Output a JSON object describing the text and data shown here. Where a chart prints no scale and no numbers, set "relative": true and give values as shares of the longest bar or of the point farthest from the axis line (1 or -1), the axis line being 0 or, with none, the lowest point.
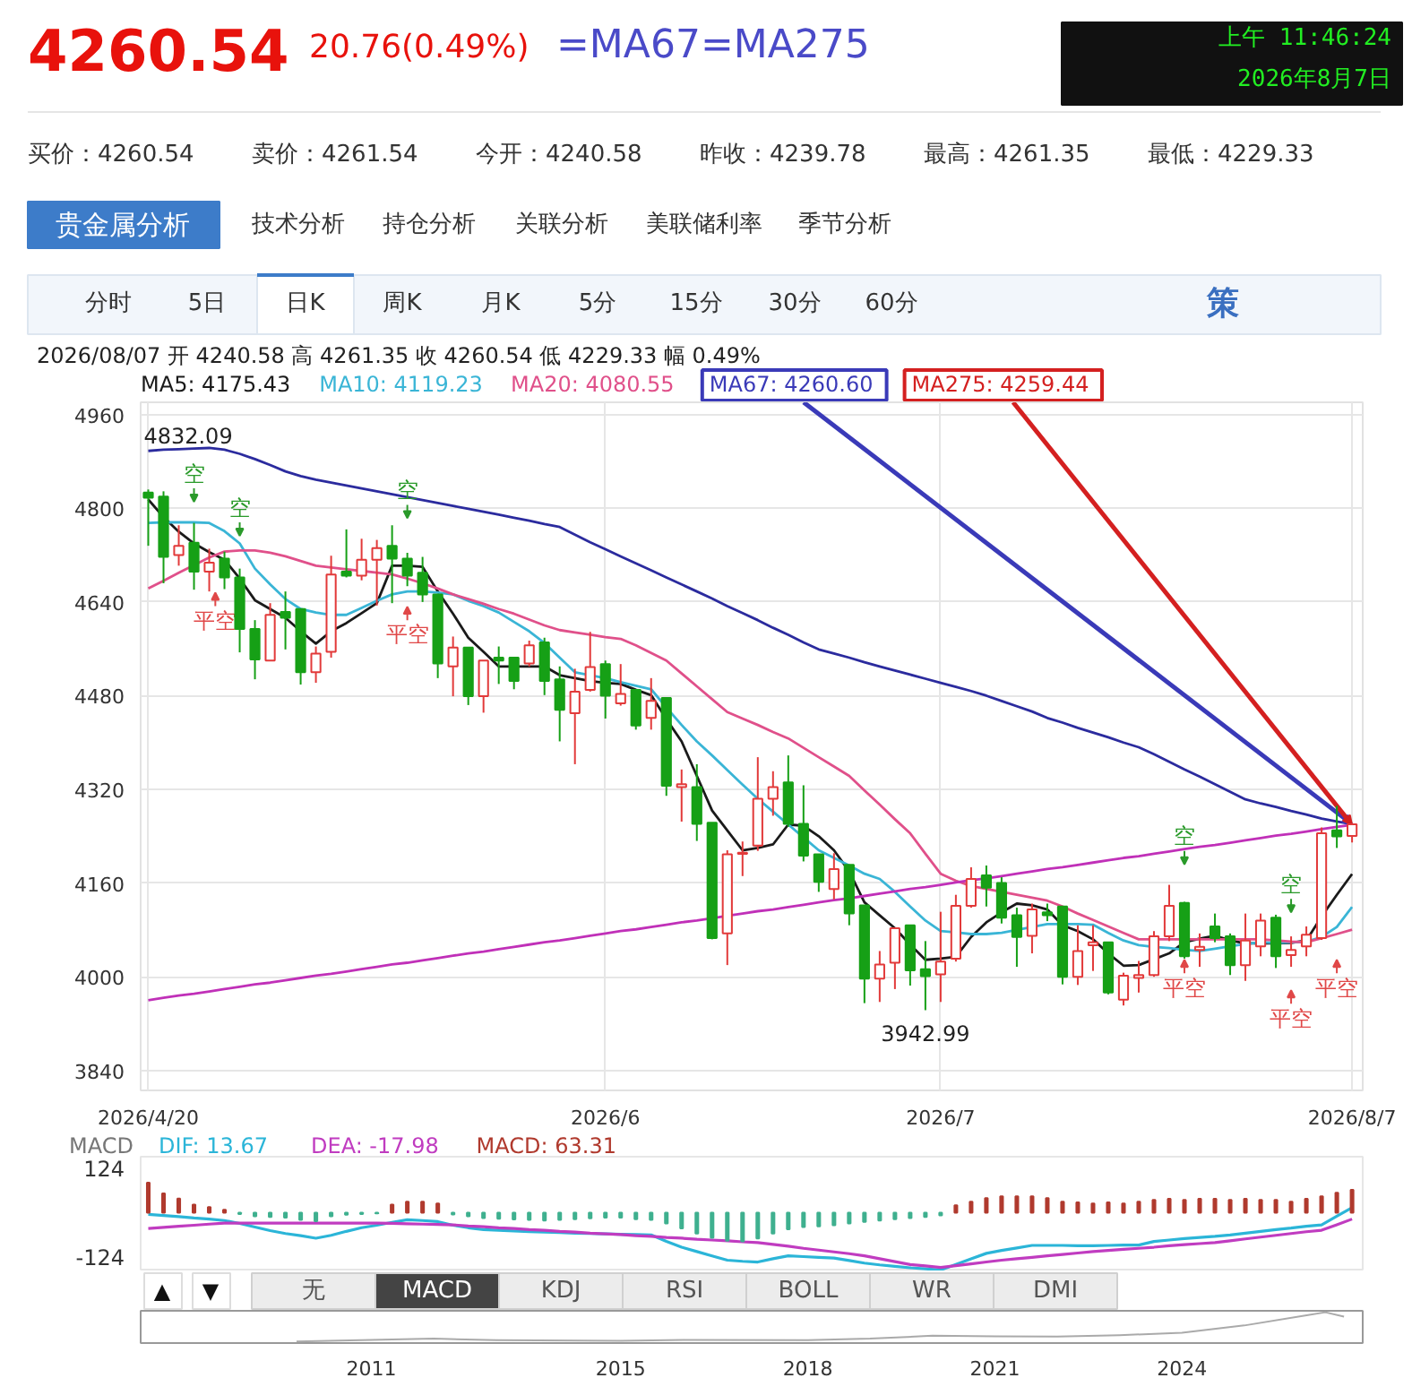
{
  "chart_data": [
    {
      "type": "other",
      "annotations": [
        "4260.54",
        "20.76(0.49%)",
        "=MA67=MA275",
        "上午 11:46:24",
        "2026年8月7日",
        "买价：4260.54",
        "卖价：4261.54",
        "今开：4240.58",
        "昨收：4239.78",
        "最高：4261.35",
        "最低：4229.33",
        "贵金属分析",
        "技术分析",
        "持仓分析",
        "关联分析",
        "美联储利率",
        "季节分析",
        "分时",
        "5日",
        "日K",
        "周K",
        "月K",
        "5分",
        "15分",
        "30分",
        "60分",
        "策"
      ]
    },
    {
      "type": "candlestick",
      "subtitle": "2026/08/07 开 4240.58 高 4261.35 收 4260.54 低 4229.33 幅 0.49%",
      "categories": [
        "2026/4/20",
        null,
        null,
        null,
        null,
        null,
        null,
        null,
        null,
        null,
        null,
        null,
        null,
        null,
        null,
        null,
        null,
        null,
        null,
        null,
        null,
        null,
        null,
        null,
        null,
        null,
        null,
        null,
        null,
        null,
        "2026/6",
        null,
        null,
        null,
        null,
        null,
        null,
        null,
        null,
        null,
        null,
        null,
        null,
        null,
        null,
        null,
        null,
        null,
        null,
        null,
        null,
        null,
        "2026/7",
        null,
        null,
        null,
        null,
        null,
        null,
        null,
        null,
        null,
        null,
        null,
        null,
        null,
        null,
        null,
        null,
        null,
        null,
        null,
        null,
        null,
        null,
        null,
        null,
        null,
        null,
        "2026/8/7"
      ],
      "ohlc": [
        [
          4827,
          4832.09,
          4736,
          4818
        ],
        [
          4820,
          4829,
          4672,
          4717
        ],
        [
          4720,
          4771,
          4702,
          4736
        ],
        [
          4741,
          4775,
          4661,
          4692
        ],
        [
          4692,
          4731,
          4658,
          4707
        ],
        [
          4714,
          4726,
          4662,
          4682
        ],
        [
          4682,
          4697,
          4554,
          4594
        ],
        [
          4594,
          4609,
          4508,
          4542
        ],
        [
          4540,
          4638,
          4540,
          4618
        ],
        [
          4623,
          4658,
          4559,
          4613
        ],
        [
          4628,
          4628,
          4499,
          4520
        ],
        [
          4520,
          4564,
          4502,
          4552
        ],
        [
          4555,
          4719,
          4545,
          4687
        ],
        [
          4692,
          4764,
          4682,
          4685
        ],
        [
          4685,
          4748,
          4677,
          4712
        ],
        [
          4712,
          4746,
          4634,
          4732
        ],
        [
          4736,
          4771,
          4638,
          4714
        ],
        [
          4714,
          4724,
          4667,
          4685
        ],
        [
          4690,
          4717,
          4640,
          4653
        ],
        [
          4653,
          4653,
          4510,
          4535
        ],
        [
          4530,
          4581,
          4479,
          4562
        ],
        [
          4562,
          4562,
          4464,
          4479
        ],
        [
          4479,
          4540,
          4451,
          4540
        ],
        [
          4545,
          4564,
          4500,
          4540
        ],
        [
          4545,
          4545,
          4491,
          4505
        ],
        [
          4535,
          4574,
          4530,
          4566
        ],
        [
          4571,
          4579,
          4481,
          4505
        ],
        [
          4508,
          4530,
          4402,
          4456
        ],
        [
          4450,
          4526,
          4363,
          4487
        ],
        [
          4490,
          4589,
          4487,
          4529
        ],
        [
          4534,
          4540,
          4441,
          4480
        ],
        [
          4467,
          4534,
          4463,
          4483
        ],
        [
          4490,
          4490,
          4422,
          4429
        ],
        [
          4442,
          4510,
          4422,
          4471
        ],
        [
          4476,
          4476,
          4309,
          4326
        ],
        [
          4324,
          4354,
          4265,
          4329
        ],
        [
          4324,
          4363,
          4232,
          4261
        ],
        [
          4263,
          4263,
          4064,
          4066
        ],
        [
          4074,
          4216,
          4020,
          4209
        ],
        [
          4210,
          4231,
          4172,
          4212
        ],
        [
          4224,
          4375,
          4215,
          4304
        ],
        [
          4304,
          4351,
          4275,
          4324
        ],
        [
          4332,
          4378,
          4256,
          4261
        ],
        [
          4261,
          4327,
          4197,
          4207
        ],
        [
          4209,
          4209,
          4145,
          4162
        ],
        [
          4150,
          4211,
          4132,
          4184
        ],
        [
          4191,
          4191,
          4088,
          4108
        ],
        [
          4122,
          4122,
          3955,
          3997
        ],
        [
          3997,
          4044,
          3957,
          4021
        ],
        [
          4024,
          4083,
          3979,
          4083
        ],
        [
          4088,
          4088,
          3985,
          4011
        ],
        [
          4013,
          4061,
          3942.99,
          4001
        ],
        [
          4004,
          4111,
          3957,
          4026
        ],
        [
          4031,
          4140,
          4026,
          4121
        ],
        [
          4121,
          4187,
          4118,
          4167
        ],
        [
          4173,
          4190,
          4120,
          4152
        ],
        [
          4160,
          4170,
          4091,
          4101
        ],
        [
          4105,
          4118,
          4017,
          4068
        ],
        [
          4070,
          4125,
          4040,
          4115
        ],
        [
          4110,
          4125,
          4095,
          4105
        ],
        [
          4120,
          4120,
          3987,
          4000
        ],
        [
          4000,
          4088,
          3986,
          4044
        ],
        [
          4054,
          4088,
          4010,
          4059
        ],
        [
          4059,
          4059,
          3970,
          3973
        ],
        [
          3961,
          4007,
          3951,
          4002
        ],
        [
          3998,
          4027,
          3973,
          4003
        ],
        [
          4003,
          4078,
          4000,
          4069
        ],
        [
          4069,
          4157,
          4061,
          4121
        ],
        [
          4126,
          4128,
          4031,
          4035
        ],
        [
          4046,
          4074,
          4017,
          4051
        ],
        [
          4086,
          4108,
          4059,
          4066
        ],
        [
          4069,
          4074,
          4003,
          4020
        ],
        [
          4020,
          4108,
          3993,
          4062
        ],
        [
          4052,
          4108,
          4035,
          4096
        ],
        [
          4101,
          4106,
          4015,
          4035
        ],
        [
          4037,
          4069,
          4017,
          4046
        ],
        [
          4052,
          4086,
          4035,
          4072
        ],
        [
          4066,
          4255,
          4063,
          4245
        ],
        [
          4250,
          4292,
          4220,
          4239.78
        ],
        [
          4240.58,
          4261.35,
          4229.33,
          4260.54
        ]
      ],
      "series": [
        {
          "name": "MA5: 4175.43",
          "type": "line",
          "color": "#1a1a1a",
          "values": [
            4815,
            4785,
            4760,
            4740,
            4725,
            4712,
            4680,
            4643,
            4628,
            4613,
            4590,
            4569,
            4590,
            4604,
            4621,
            4638,
            4702,
            4702,
            4700,
            4658,
            4620,
            4579,
            4555,
            4530,
            4530,
            4530,
            4530,
            4515,
            4510,
            4505,
            4502,
            4500,
            4490,
            4481,
            4440,
            4402,
            4343,
            4284,
            4250,
            4216,
            4220,
            4226,
            4260,
            4258,
            4240,
            4216,
            4180,
            4127,
            4105,
            4083,
            4055,
            4029,
            4031,
            4034,
            4068,
            4093,
            4110,
            4125,
            4122,
            4115,
            4088,
            4078,
            4064,
            4040,
            4019,
            4020,
            4030,
            4040,
            4059,
            4065,
            4070,
            4062,
            4057,
            4057,
            4057,
            4058,
            4062,
            4103,
            4140,
            4175.43
          ]
        },
        {
          "name": "MA10: 4119.23",
          "type": "line",
          "color": "#3ab5d6",
          "values": [
            4775,
            4776,
            4776,
            4776,
            4775,
            4761,
            4740,
            4697,
            4670,
            4645,
            4628,
            4622,
            4618,
            4618,
            4630,
            4642,
            4653,
            4658,
            4658,
            4656,
            4653,
            4642,
            4633,
            4622,
            4606,
            4590,
            4570,
            4545,
            4520,
            4515,
            4510,
            4503,
            4497,
            4491,
            4460,
            4430,
            4402,
            4378,
            4353,
            4328,
            4304,
            4282,
            4260,
            4238,
            4216,
            4203,
            4190,
            4176,
            4167,
            4145,
            4120,
            4096,
            4078,
            4076,
            4073,
            4073,
            4075,
            4080,
            4085,
            4090,
            4090,
            4090,
            4089,
            4075,
            4062,
            4054,
            4051,
            4049,
            4046,
            4044,
            4048,
            4052,
            4056,
            4059,
            4058,
            4059,
            4060,
            4068,
            4085,
            4119.23
          ]
        },
        {
          "name": "MA20: 4080.55",
          "type": "line",
          "color": "#e0508a",
          "values": [
            4663,
            4676,
            4690,
            4703,
            4716,
            4726,
            4728,
            4728,
            4724,
            4718,
            4710,
            4702,
            4699,
            4696,
            4693,
            4690,
            4687,
            4680,
            4672,
            4663,
            4653,
            4645,
            4637,
            4628,
            4620,
            4610,
            4600,
            4592,
            4588,
            4584,
            4580,
            4577,
            4566,
            4553,
            4540,
            4518,
            4496,
            4474,
            4452,
            4441,
            4430,
            4418,
            4407,
            4391,
            4375,
            4359,
            4343,
            4318,
            4294,
            4269,
            4245,
            4210,
            4176,
            4164,
            4155,
            4150,
            4145,
            4140,
            4135,
            4130,
            4120,
            4108,
            4097,
            4086,
            4075,
            4064,
            4064,
            4064,
            4064,
            4064,
            4064,
            4064,
            4064,
            4064,
            4062,
            4060,
            4059,
            4066,
            4073,
            4080.55
          ]
        },
        {
          "type": "line",
          "color": "#2b2b9e",
          "values": [
            4898,
            4900,
            4901,
            4902,
            4903,
            4900,
            4893,
            4884,
            4874,
            4863,
            4855,
            4849,
            4844,
            4839,
            4834,
            4829,
            4824,
            4819,
            4814,
            4809,
            4804,
            4799,
            4794,
            4789,
            4784,
            4779,
            4773,
            4768,
            4755,
            4742,
            4730,
            4718,
            4706,
            4694,
            4682,
            4670,
            4658,
            4646,
            4633,
            4621,
            4609,
            4596,
            4584,
            4571,
            4559,
            4552,
            4545,
            4537,
            4530,
            4523,
            4516,
            4509,
            4502,
            4495,
            4488,
            4480,
            4471,
            4462,
            4453,
            4442,
            4434,
            4425,
            4417,
            4409,
            4400,
            4392,
            4380,
            4367,
            4354,
            4342,
            4329,
            4316,
            4303,
            4296,
            4290,
            4283,
            4277,
            4270,
            4265,
            4260.6
          ]
        },
        {
          "type": "line",
          "color": "#c030b8",
          "values": [
            3960,
            3964,
            3968,
            3971,
            3975,
            3979,
            3983,
            3987,
            3990,
            3994,
            3998,
            4002,
            4005,
            4009,
            4013,
            4017,
            4021,
            4024,
            4028,
            4032,
            4036,
            4040,
            4043,
            4047,
            4051,
            4055,
            4059,
            4062,
            4066,
            4070,
            4074,
            4078,
            4081,
            4085,
            4089,
            4093,
            4096,
            4100,
            4104,
            4108,
            4112,
            4115,
            4119,
            4123,
            4127,
            4131,
            4134,
            4138,
            4142,
            4146,
            4150,
            4153,
            4157,
            4161,
            4165,
            4168,
            4172,
            4176,
            4180,
            4184,
            4187,
            4191,
            4195,
            4199,
            4203,
            4206,
            4210,
            4214,
            4218,
            4222,
            4225,
            4229,
            4233,
            4237,
            4241,
            4244,
            4248,
            4252,
            4256,
            4259.44
          ]
        }
      ],
      "ylim": [
        3806,
        4981
      ],
      "yticks": [
        3840,
        4000,
        4160,
        4320,
        4480,
        4640,
        4800,
        4960
      ],
      "grid": true,
      "annotations": [
        "4832.09",
        "3942.99",
        "空",
        "空",
        "平空",
        "空",
        "平空",
        "空",
        "平空",
        "空",
        "平空",
        "平空",
        {
          "text": "MA67: 4260.60",
          "x": "2026/8/7",
          "y": 4260.6
        },
        {
          "text": "MA275: 4259.44",
          "x": "2026/8/7",
          "y": 4259.44
        }
      ]
    },
    {
      "type": "bar",
      "title": "MACD",
      "categories": [
        null,
        null,
        null,
        null,
        null,
        null,
        null,
        null,
        null,
        null,
        null,
        null,
        null,
        null,
        null,
        null,
        null,
        null,
        null,
        null,
        null,
        null,
        null,
        null,
        null,
        null,
        null,
        null,
        null,
        null,
        null,
        null,
        null,
        null,
        null,
        null,
        null,
        null,
        null,
        null,
        null,
        null,
        null,
        null,
        null,
        null,
        null,
        null,
        null,
        null,
        null,
        null,
        null,
        null,
        null,
        null,
        null,
        null,
        null,
        null,
        null,
        null,
        null,
        null,
        null,
        null,
        null,
        null,
        null,
        null,
        null,
        null,
        null,
        null,
        null,
        null,
        null,
        null,
        null,
        null
      ],
      "series": [
        {
          "name": "DIF: 13.67",
          "type": "line",
          "color": "#2bb5d8",
          "values": [
            -5,
            -8,
            -11,
            -15,
            -18,
            -22,
            -30,
            -40,
            -50,
            -58,
            -64,
            -71,
            -63,
            -52,
            -42,
            -35,
            -27,
            -20,
            -22,
            -25,
            -35,
            -42,
            -47,
            -49,
            -51,
            -53,
            -54,
            -55,
            -57,
            -58,
            -59,
            -60,
            -61,
            -62,
            -80,
            -96,
            -108,
            -120,
            -132,
            -135,
            -137,
            -128,
            -120,
            -122,
            -124,
            -126,
            -133,
            -140,
            -145,
            -149,
            -153,
            -156,
            -159,
            -144,
            -128,
            -113,
            -105,
            -98,
            -91,
            -91,
            -91,
            -92,
            -92,
            -91,
            -90,
            -90,
            -80,
            -76,
            -72,
            -69,
            -66,
            -62,
            -57,
            -52,
            -47,
            -43,
            -38,
            -34,
            -10,
            13.67
          ]
        },
        {
          "name": "DEA: -17.98",
          "type": "line",
          "color": "#c03cc0",
          "values": [
            -44,
            -41,
            -38,
            -35,
            -32,
            -29,
            -29,
            -29,
            -29,
            -29,
            -29,
            -29,
            -29,
            -29,
            -29,
            -29,
            -30,
            -31,
            -32,
            -33,
            -34,
            -37,
            -39,
            -42,
            -44,
            -47,
            -49,
            -52,
            -54,
            -57,
            -59,
            -61,
            -64,
            -66,
            -69,
            -71,
            -74,
            -76,
            -78,
            -81,
            -83,
            -88,
            -93,
            -99,
            -104,
            -109,
            -114,
            -120,
            -128,
            -136,
            -144,
            -148,
            -152,
            -147,
            -142,
            -137,
            -132,
            -128,
            -124,
            -120,
            -116,
            -112,
            -108,
            -105,
            -102,
            -99,
            -96,
            -92,
            -89,
            -86,
            -83,
            -78,
            -73,
            -68,
            -63,
            -58,
            -53,
            -49,
            -34,
            -17.98
          ]
        },
        {
          "name": "MACD: 63.31",
          "type": "bar",
          "color": "#b03a2e",
          "values": [
            83,
            53,
            39,
            22,
            15,
            8,
            -4,
            -10,
            -12,
            -14,
            -20,
            -24,
            -10,
            -6,
            -4,
            -2,
            22,
            30,
            30,
            25,
            -5,
            -10,
            -15,
            -17,
            -19,
            -20,
            -22,
            -20,
            -18,
            -16,
            -14,
            -14,
            -18,
            -20,
            -30,
            -44,
            -58,
            -70,
            -78,
            -80,
            -72,
            -58,
            -46,
            -40,
            -38,
            -35,
            -30,
            -26,
            -22,
            -18,
            -15,
            -12,
            -8,
            20,
            30,
            40,
            45,
            45,
            45,
            40,
            30,
            28,
            25,
            28,
            25,
            30,
            35,
            38,
            35,
            38,
            38,
            35,
            38,
            35,
            35,
            30,
            38,
            45,
            55,
            63.31
          ],
          "colors": [
            "#b03a2e",
            "#b03a2e",
            "#b03a2e",
            "#b03a2e",
            "#b03a2e",
            "#b03a2e",
            "#3fb08f",
            "#3fb08f",
            "#3fb08f",
            "#3fb08f",
            "#3fb08f",
            "#3fb08f",
            "#3fb08f",
            "#3fb08f",
            "#3fb08f",
            "#3fb08f",
            "#b03a2e",
            "#b03a2e",
            "#b03a2e",
            "#b03a2e",
            "#3fb08f",
            "#3fb08f",
            "#3fb08f",
            "#3fb08f",
            "#3fb08f",
            "#3fb08f",
            "#3fb08f",
            "#3fb08f",
            "#3fb08f",
            "#3fb08f",
            "#3fb08f",
            "#3fb08f",
            "#3fb08f",
            "#3fb08f",
            "#3fb08f",
            "#3fb08f",
            "#3fb08f",
            "#3fb08f",
            "#3fb08f",
            "#3fb08f",
            "#3fb08f",
            "#3fb08f",
            "#3fb08f",
            "#3fb08f",
            "#3fb08f",
            "#3fb08f",
            "#3fb08f",
            "#3fb08f",
            "#3fb08f",
            "#3fb08f",
            "#3fb08f",
            "#3fb08f",
            "#3fb08f",
            "#b03a2e",
            "#b03a2e",
            "#b03a2e",
            "#b03a2e",
            "#b03a2e",
            "#b03a2e",
            "#b03a2e",
            "#b03a2e",
            "#b03a2e",
            "#b03a2e",
            "#b03a2e",
            "#b03a2e",
            "#b03a2e",
            "#b03a2e",
            "#b03a2e",
            "#b03a2e",
            "#b03a2e",
            "#b03a2e",
            "#b03a2e",
            "#b03a2e",
            "#b03a2e",
            "#b03a2e",
            "#b03a2e",
            "#b03a2e",
            "#b03a2e",
            "#b03a2e",
            "#b03a2e"
          ]
        }
      ],
      "ylim": [
        -163,
        155
      ],
      "yticks": [
        124,
        -124
      ],
      "tick_labels": "y"
    },
    {
      "type": "other",
      "annotations": [
        "▲",
        "▼",
        "无",
        "MACD",
        "KDJ",
        "RSI",
        "BOLL",
        "WR",
        "DMI"
      ]
    },
    {
      "type": "line",
      "relative": true,
      "color": "#aaaaaa",
      "x": [
        2009.8,
        2011,
        2012,
        2013,
        2015,
        2016,
        2018,
        2019,
        2020,
        2021,
        2022,
        2023,
        2024,
        2025,
        2026,
        2026.3,
        2026.6
      ],
      "values": [
        0,
        0.06,
        0.1,
        0.05,
        0.03,
        0.06,
        0.05,
        0.1,
        0.2,
        0.18,
        0.17,
        0.22,
        0.3,
        0.55,
        0.9,
        1,
        0.85
      ],
      "xlim": [
        2007.3,
        2026.9
      ],
      "xticks": [
        2011,
        2015,
        2018,
        2021,
        2024
      ],
      "tick_labels": "x"
    }
  ]
}
